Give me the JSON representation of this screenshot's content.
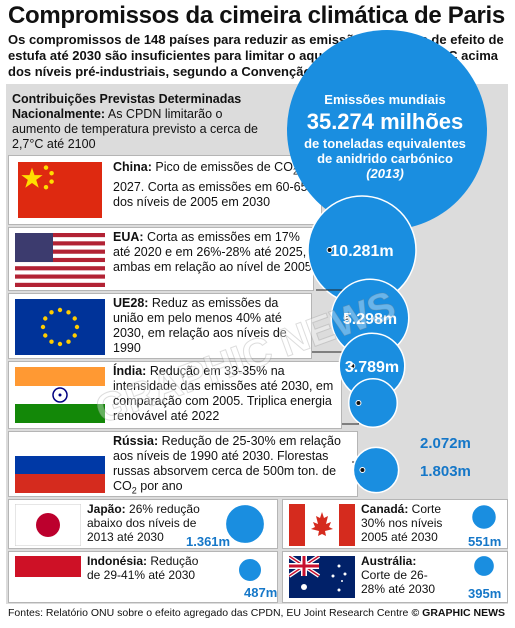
{
  "title": "Compromissos da cimeira climática de Paris",
  "subtitle": "Os compromissos de 148 países para reduzir as emissões de gases de efeito de estufa até 2030 são insuficientes para limitar o aquecimento global a 2°C acima dos níveis pré-industriais, segundo a Convenção Quadro da ONU",
  "intro": {
    "heading": "Contribuições Previstas Determinadas Nacionalmente:",
    "text": " As CPDN limitarão o aumento de temperatura previsto a cerca de 2,7°C até 2100"
  },
  "world": {
    "label": "Emissões mundiais",
    "value": "35.274 milhões",
    "unit": "de toneladas equivalentes de anidrido carbónico",
    "year": "(2013)"
  },
  "chart_data": {
    "type": "bubble",
    "unit": "milhões de toneladas equivalentes de CO2",
    "world_total": 35274,
    "world_year": 2013,
    "countries": [
      {
        "name": "China",
        "value": 10281,
        "label": "10.281m",
        "flag": "china"
      },
      {
        "name": "EUA",
        "value": 5298,
        "label": "5.298m",
        "flag": "usa"
      },
      {
        "name": "UE28",
        "value": 3789,
        "label": "3.789m",
        "flag": "eu"
      },
      {
        "name": "Índia",
        "value": 2072,
        "label": "2.072m",
        "flag": "india"
      },
      {
        "name": "Rússia",
        "value": 1803,
        "label": "1.803m",
        "flag": "russia"
      },
      {
        "name": "Japão",
        "value": 1361,
        "label": "1.361m",
        "flag": "japan"
      },
      {
        "name": "Canadá",
        "value": 551,
        "label": "551m",
        "flag": "canada"
      },
      {
        "name": "Indonésia",
        "value": 487,
        "label": "487m",
        "flag": "indonesia"
      },
      {
        "name": "Austrália",
        "value": 395,
        "label": "395m",
        "flag": "australia"
      }
    ]
  },
  "rows": {
    "china": {
      "name": "China:",
      "t1": " Pico de emissões de CO",
      "sub": "2",
      "t2": " em 2027. Corta as emissões em 60-65% dos níveis de 2005 em 2030"
    },
    "usa": {
      "name": "EUA:",
      "text": " Corta as emissões em 17% até 2020 e em 26%-28% até 2025, ambas em relação ao nível de 2005"
    },
    "eu": {
      "name": "UE28:",
      "text": " Reduz as emissões da união em pelo menos 40% até 2030, em relação aos níveis de 1990"
    },
    "india": {
      "name": "Índia:",
      "text": " Redução em 33-35% na intensidade das emissões até 2030, em comparação com 2005. Triplica energia renovável até 2022"
    },
    "russia": {
      "name": "Rússia:",
      "t1": " Redução de 25-30% em relação aos níveis de 1990 até 2030. Florestas russas absorvem cerca de 500m ton. de CO",
      "sub": "2",
      "t2": " por ano"
    },
    "japan": {
      "name": "Japão:",
      "text": " 26% redução abaixo dos níveis de 2013 até 2030"
    },
    "canada": {
      "name": "Canadá:",
      "text": " Corte 30% nos níveis 2005 até 2030"
    },
    "indonesia": {
      "name": "Indonésia:",
      "text": " Redução de 29-41% até 2030"
    },
    "australia": {
      "name": "Austrália:",
      "text": " Corte de 26-28% até 2030"
    }
  },
  "watermark": "GRAPHIC NEWS",
  "source": "Fontes: Relatório ONU sobre o efeito agregado das CPDN, EU Joint Research Centre",
  "brand": "© GRAPHIC NEWS",
  "colors": {
    "bubble": "#1a8ee0",
    "bubble_dark": "#1577c8",
    "panel": "#dcdcdc"
  }
}
